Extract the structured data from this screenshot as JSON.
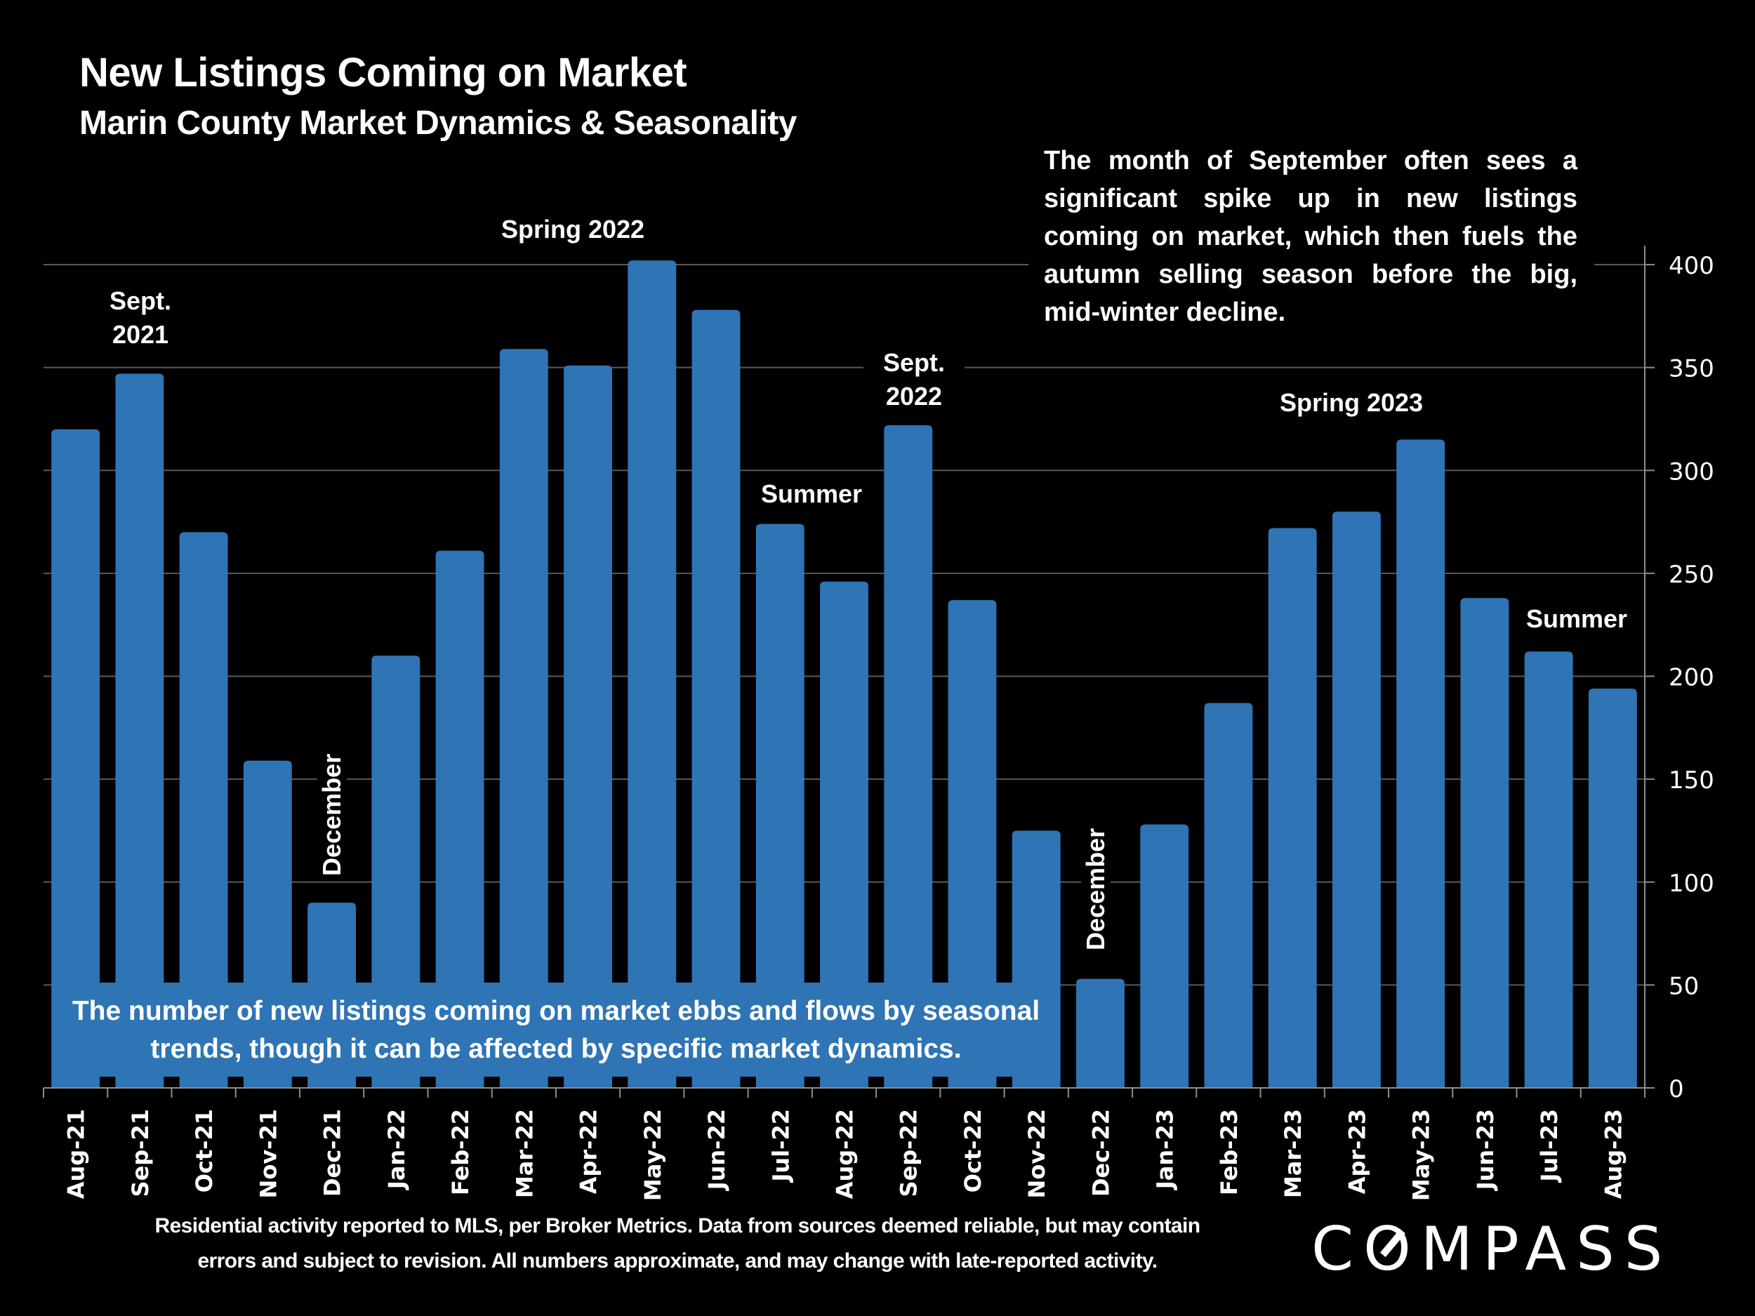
{
  "header": {
    "title": "New Listings Coming on Market",
    "subtitle": "Marin County Market Dynamics & Seasonality"
  },
  "callout": "The month of September often sees a significant spike up in new listings coming on market, which then fuels the autumn selling season before the big, mid-winter decline.",
  "summary_box": "The number of new listings coming on market ebbs and flows by seasonal trends, though it can be affected by specific market dynamics.",
  "annotations": {
    "sept2021_line1": "Sept.",
    "sept2021_line2": "2021",
    "december_2021": "December",
    "spring2022": "Spring 2022",
    "summer2022": "Summer",
    "sept2022_line1": "Sept.",
    "sept2022_line2": "2022",
    "december_2022": "December",
    "spring2023": "Spring 2023",
    "summer2023": "Summer"
  },
  "footer": {
    "line1": "Residential activity reported to MLS, per Broker Metrics. Data from sources deemed reliable, but may contain",
    "line2": "errors and subject to revision. All numbers approximate, and may change with late-reported activity."
  },
  "logo": {
    "text_pre": "C",
    "text_o": "O",
    "text_post": "MPASS",
    "icon": "compass-logo"
  },
  "colors": {
    "bar": "#2f74b5",
    "background": "#000000",
    "grid": "#595959",
    "text": "#ffffff"
  },
  "chart_data": {
    "type": "bar",
    "title": "New Listings Coming on Market",
    "subtitle": "Marin County Market Dynamics & Seasonality",
    "xlabel": "",
    "ylabel": "",
    "y_axis_side": "right",
    "ylim": [
      0,
      400
    ],
    "yticks": [
      0,
      50,
      100,
      150,
      200,
      250,
      300,
      350,
      400
    ],
    "grid": true,
    "categories": [
      "Aug-21",
      "Sep-21",
      "Oct-21",
      "Nov-21",
      "Dec-21",
      "Jan-22",
      "Feb-22",
      "Mar-22",
      "Apr-22",
      "May-22",
      "Jun-22",
      "Jul-22",
      "Aug-22",
      "Sep-22",
      "Oct-22",
      "Nov-22",
      "Dec-22",
      "Jan-23",
      "Feb-23",
      "Mar-23",
      "Apr-23",
      "May-23",
      "Jun-23",
      "Jul-23",
      "Aug-23"
    ],
    "values": [
      320,
      347,
      270,
      159,
      90,
      210,
      261,
      359,
      351,
      402,
      378,
      274,
      246,
      322,
      237,
      125,
      53,
      128,
      187,
      272,
      280,
      315,
      238,
      212,
      194
    ]
  }
}
